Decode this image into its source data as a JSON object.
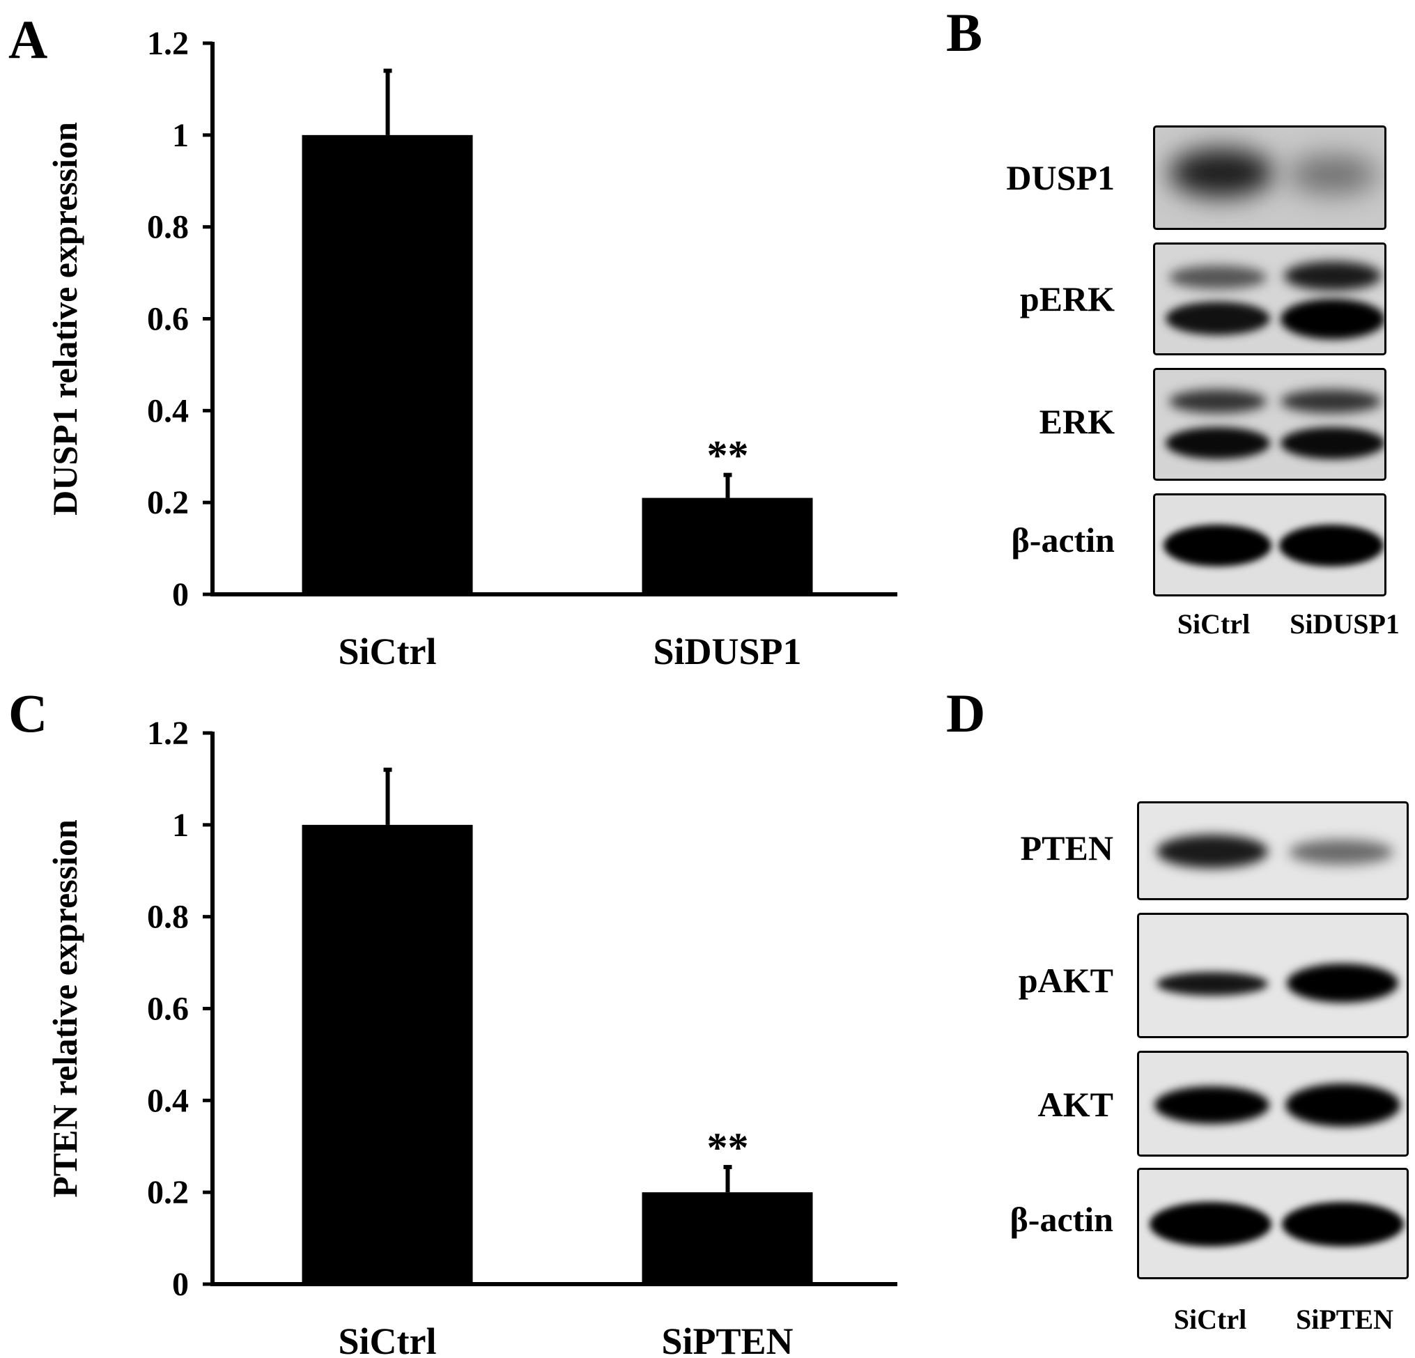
{
  "panels": {
    "a": {
      "letter": "A"
    },
    "b": {
      "letter": "B"
    },
    "c": {
      "letter": "C"
    },
    "d": {
      "letter": "D"
    }
  },
  "chart_data": [
    {
      "type": "bar",
      "categories": [
        "SiCtrl",
        "SiDUSP1"
      ],
      "values": [
        1.0,
        0.21
      ],
      "errors": [
        0.14,
        0.05
      ],
      "annotations": [
        "",
        "**"
      ],
      "ylabel": "DUSP1 relative expression",
      "ylim": [
        0,
        1.2
      ],
      "yticks": [
        0,
        0.2,
        0.4,
        0.6,
        0.8,
        1,
        1.2
      ],
      "ytick_labels": [
        "0",
        "0.2",
        "0.4",
        "0.6",
        "0.8",
        "1",
        "1.2"
      ],
      "color": "#000000"
    },
    {
      "type": "bar",
      "categories": [
        "SiCtrl",
        "SiPTEN"
      ],
      "values": [
        1.0,
        0.2
      ],
      "errors": [
        0.12,
        0.055
      ],
      "annotations": [
        "",
        "**"
      ],
      "ylabel": "PTEN relative expression",
      "ylim": [
        0,
        1.2
      ],
      "yticks": [
        0,
        0.2,
        0.4,
        0.6,
        0.8,
        1,
        1.2
      ],
      "ytick_labels": [
        "0",
        "0.2",
        "0.4",
        "0.6",
        "0.8",
        "1",
        "1.2"
      ],
      "color": "#000000"
    }
  ],
  "blots": {
    "b": {
      "rows": [
        "DUSP1",
        "pERK",
        "ERK",
        "β-actin"
      ],
      "lanes": [
        "SiCtrl",
        "SiDUSP1"
      ]
    },
    "d": {
      "rows": [
        "PTEN",
        "pAKT",
        "AKT",
        "β-actin"
      ],
      "lanes": [
        "SiCtrl",
        "SiPTEN"
      ]
    }
  }
}
